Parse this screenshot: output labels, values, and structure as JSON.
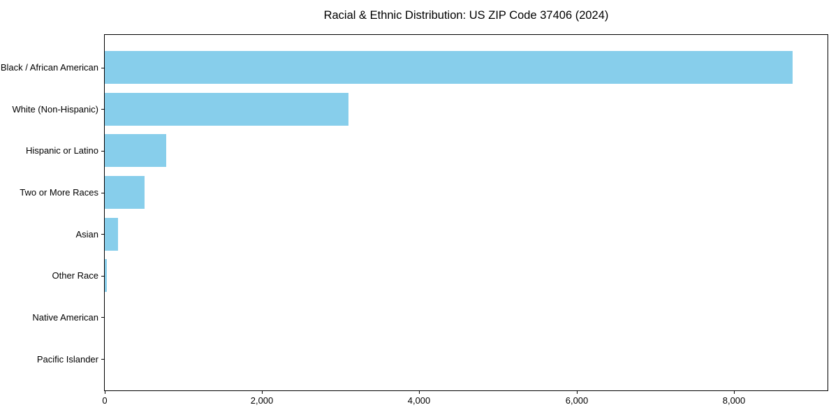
{
  "chart_data": {
    "type": "bar",
    "orientation": "horizontal",
    "title": "Racial & Ethnic Distribution: US ZIP Code 37406 (2024)",
    "categories": [
      "Black / African American",
      "White (Non-Hispanic)",
      "Hispanic or Latino",
      "Two or More Races",
      "Asian",
      "Other Race",
      "Native American",
      "Pacific Islander"
    ],
    "values": [
      8750,
      3100,
      780,
      510,
      170,
      25,
      0,
      0
    ],
    "xlabel": "",
    "ylabel": "",
    "xlim": [
      0,
      9190
    ],
    "x_ticks": [
      0,
      2000,
      4000,
      6000,
      8000
    ],
    "x_tick_labels": [
      "0",
      "2,000",
      "4,000",
      "6,000",
      "8,000"
    ],
    "grid": false,
    "legend": null,
    "bar_color": "#87CEEB",
    "frame_color": "#000000",
    "text_color": "#000000",
    "background_color": "#ffffff"
  }
}
